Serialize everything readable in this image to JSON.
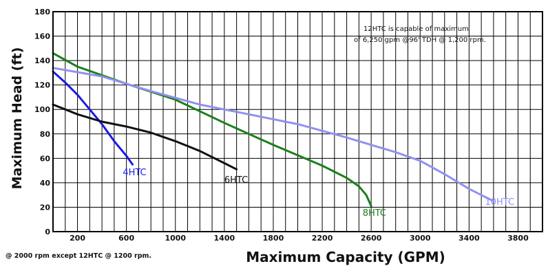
{
  "chart_data": {
    "type": "line",
    "xlabel": "Maximum Capacity (GPM)",
    "ylabel": "Maximum Head (ft)",
    "xlim": [
      0,
      4000
    ],
    "ylim": [
      0,
      180
    ],
    "x_ticks": [
      200,
      600,
      1000,
      1400,
      1800,
      2200,
      2600,
      3000,
      3400,
      3800
    ],
    "x_tick_labels": [
      "200",
      "600",
      "1000",
      "1400",
      "1800",
      "2200",
      "2600",
      "3000",
      "3400",
      "3800"
    ],
    "y_ticks": [
      0,
      20,
      40,
      60,
      80,
      100,
      120,
      140,
      160,
      180
    ],
    "y_tick_labels": [
      "0",
      "20",
      "40",
      "60",
      "80",
      "100",
      "120",
      "140",
      "160",
      "180"
    ],
    "grid": true,
    "annotation_lines": [
      "12HTC is capable of maximum",
      "of 6,250 gpm @96' TDH @ 1,200 rpm."
    ],
    "footnote": "@ 2000 rpm except 12HTC @ 1200 rpm.",
    "series": [
      {
        "name": "4HTC",
        "color": "#1a1ae6",
        "label_at": [
          570,
          46
        ],
        "points": [
          [
            0,
            131
          ],
          [
            100,
            122
          ],
          [
            200,
            112
          ],
          [
            300,
            100
          ],
          [
            400,
            88
          ],
          [
            500,
            74
          ],
          [
            600,
            62
          ],
          [
            650,
            55
          ]
        ]
      },
      {
        "name": "6HTC",
        "color": "#111111",
        "label_at": [
          1400,
          40
        ],
        "points": [
          [
            0,
            104
          ],
          [
            100,
            100
          ],
          [
            200,
            96
          ],
          [
            400,
            90
          ],
          [
            600,
            86
          ],
          [
            800,
            81
          ],
          [
            1000,
            74
          ],
          [
            1200,
            66
          ],
          [
            1400,
            56
          ],
          [
            1500,
            51
          ]
        ]
      },
      {
        "name": "8HTC",
        "color": "#1a7f1a",
        "label_at": [
          2530,
          13
        ],
        "points": [
          [
            0,
            146
          ],
          [
            200,
            135
          ],
          [
            600,
            121
          ],
          [
            1000,
            108
          ],
          [
            1400,
            89
          ],
          [
            1800,
            71
          ],
          [
            2200,
            54
          ],
          [
            2400,
            44
          ],
          [
            2500,
            37
          ],
          [
            2560,
            30
          ],
          [
            2600,
            21
          ]
        ]
      },
      {
        "name": "10HTC",
        "color": "#9090f0",
        "label_at": [
          3530,
          22
        ],
        "points": [
          [
            0,
            134
          ],
          [
            400,
            127
          ],
          [
            800,
            115
          ],
          [
            1200,
            104
          ],
          [
            1600,
            96
          ],
          [
            2000,
            88
          ],
          [
            2400,
            77
          ],
          [
            2800,
            65
          ],
          [
            3000,
            58
          ],
          [
            3200,
            47
          ],
          [
            3400,
            35
          ],
          [
            3600,
            25
          ]
        ]
      }
    ]
  }
}
